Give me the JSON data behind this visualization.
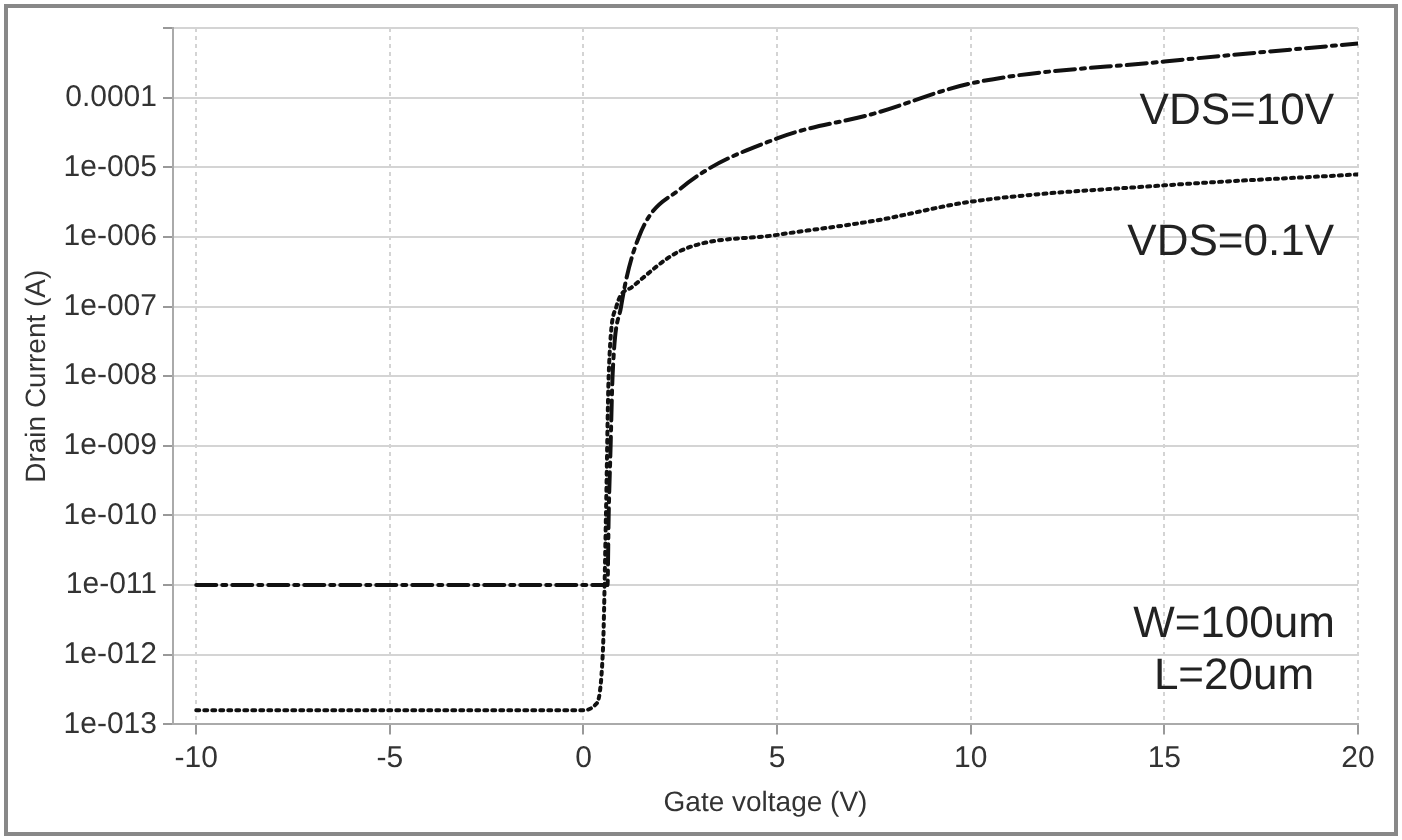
{
  "chart_data": {
    "type": "line",
    "xlabel": "Gate voltage (V)",
    "ylabel": "Drain Current (A)",
    "log": "y",
    "grid": true,
    "legend": false,
    "marker": "none",
    "xlim": [
      -10.6,
      20
    ],
    "xticks": [
      -10,
      -5,
      0,
      5,
      10,
      15,
      20
    ],
    "ylim": [
      1e-13,
      0.001
    ],
    "yticks": [
      {
        "value": 1e-13,
        "label": "1e-013"
      },
      {
        "value": 1e-12,
        "label": "1e-012"
      },
      {
        "value": 1e-11,
        "label": "1e-011"
      },
      {
        "value": 1e-10,
        "label": "1e-010"
      },
      {
        "value": 1e-09,
        "label": "1e-009"
      },
      {
        "value": 1e-08,
        "label": "1e-008"
      },
      {
        "value": 1e-07,
        "label": "1e-007"
      },
      {
        "value": 1e-06,
        "label": "1e-006"
      },
      {
        "value": 1e-05,
        "label": "1e-005"
      },
      0.0001,
      {
        "value": 0.001,
        "label": null
      }
    ],
    "series": [
      {
        "name": "VDS=10V",
        "color": "#111111",
        "line_style": "dashdot",
        "x": [
          -10,
          0.62,
          0.65,
          0.7,
          0.75,
          0.97,
          1.43,
          2.5,
          5,
          7.5,
          10,
          15,
          20
        ],
        "values": [
          1e-11,
          1e-11,
          1e-10,
          1e-09,
          1e-08,
          1e-07,
          1e-06,
          4.9e-06,
          2.6e-05,
          5.9e-05,
          0.00016,
          0.00033,
          0.0006
        ]
      },
      {
        "name": "VDS=0.1V",
        "color": "#111111",
        "line_style": "dotted",
        "x": [
          -10,
          0,
          0.3,
          0.5,
          0.58,
          0.65,
          0.85,
          1.25,
          2.5,
          5,
          7.5,
          10,
          15,
          20
        ],
        "values": [
          1.6e-13,
          1.6e-13,
          1.9e-13,
          1.1e-12,
          1e-10,
          1e-08,
          1e-07,
          1.9e-07,
          6.3e-07,
          1.07e-06,
          1.7e-06,
          3.2e-06,
          5.5e-06,
          7.9e-06
        ]
      }
    ],
    "annotations": [
      "W=100um",
      "L=20um"
    ]
  }
}
